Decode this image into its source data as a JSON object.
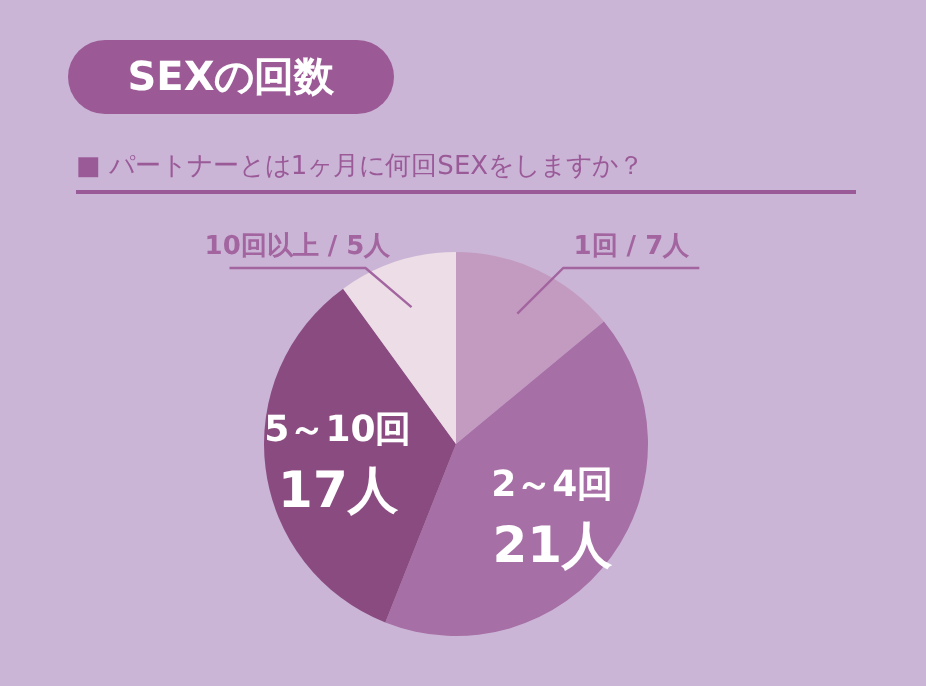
{
  "chart_data": {
    "type": "pie",
    "title": "SEXの回数",
    "subtitle": "■ パートナーとは1ヶ月に何回SEXをしますか？",
    "categories": [
      "1回 / 7人",
      "2～4回",
      "5～10回",
      "10回以上 / 5人"
    ],
    "values": [
      7,
      21,
      17,
      5
    ],
    "value_labels": [
      null,
      "21人",
      "17人",
      null
    ],
    "colors": [
      "#c39bc0",
      "#a66fa5",
      "#8a4c80",
      "#ecdde6"
    ]
  }
}
